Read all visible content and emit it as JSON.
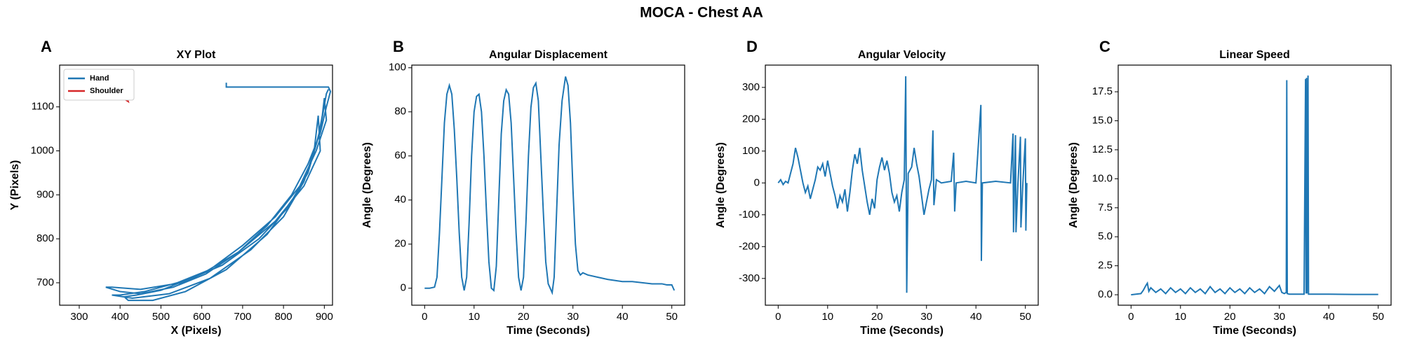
{
  "title": "MOCA - Chest AA",
  "chart_data": [
    {
      "type": "line",
      "panel": "A",
      "title": "XY Plot",
      "xlabel": "X (Pixels)",
      "ylabel": "Y (Pixels)",
      "xlim": [
        252,
        920
      ],
      "ylim": [
        649,
        1195
      ],
      "xticks": [
        300,
        400,
        500,
        600,
        700,
        800,
        900
      ],
      "yticks": [
        700,
        800,
        900,
        1000,
        1100
      ],
      "legend": "upper left",
      "series": [
        {
          "name": "Hand",
          "color": "#1f77b4",
          "x": [
            660,
            660,
            750,
            850,
            910,
            915,
            905,
            890,
            860,
            820,
            760,
            690,
            610,
            530,
            450,
            400,
            365,
            380,
            450,
            550,
            650,
            740,
            810,
            860,
            885,
            895,
            900,
            905,
            880,
            840,
            780,
            700,
            620,
            540,
            460,
            400,
            380,
            430,
            520,
            620,
            720,
            800,
            850,
            875,
            885,
            890,
            850,
            780,
            690,
            600,
            500,
            440,
            410,
            420,
            480,
            560,
            660,
            760,
            830,
            870,
            890,
            905,
            910
          ],
          "values": [
            1155,
            1145,
            1145,
            1145,
            1145,
            1135,
            1100,
            1040,
            970,
            900,
            830,
            770,
            720,
            690,
            675,
            680,
            690,
            690,
            685,
            700,
            740,
            800,
            870,
            950,
            1030,
            1080,
            1120,
            1070,
            1000,
            920,
            850,
            785,
            730,
            700,
            680,
            672,
            672,
            665,
            675,
            710,
            775,
            850,
            930,
            1000,
            1080,
            1000,
            920,
            840,
            770,
            720,
            683,
            672,
            668,
            660,
            660,
            680,
            730,
            810,
            900,
            980,
            1050,
            1130,
            1140
          ]
        },
        {
          "name": "Shoulder",
          "color": "#d62728",
          "x": [
            408,
            412,
            416,
            420,
            410,
            414,
            418
          ],
          "values": [
            1115,
            1130,
            1125,
            1112,
            1118,
            1135,
            1115
          ]
        }
      ]
    },
    {
      "type": "line",
      "panel": "B",
      "title": "Angular Displacement",
      "xlabel": "Time (Seconds)",
      "ylabel": "Angle (Degrees)",
      "xlim": [
        -2.6,
        52.6
      ],
      "ylim": [
        -7.7,
        101.2
      ],
      "xticks": [
        0,
        10,
        20,
        30,
        40,
        50
      ],
      "yticks": [
        0,
        20,
        40,
        60,
        80,
        100
      ],
      "series": [
        {
          "name": "Angular Displacement",
          "color": "#1f77b4",
          "x": [
            0,
            1,
            2,
            2.5,
            3,
            3.5,
            4,
            4.5,
            5,
            5.5,
            6,
            6.5,
            7,
            7.5,
            8,
            8.5,
            9,
            9.5,
            10,
            10.5,
            11,
            11.5,
            12,
            12.5,
            13,
            13.5,
            14,
            14.5,
            15,
            15.5,
            16,
            16.5,
            17,
            17.5,
            18,
            18.5,
            19,
            19.5,
            20,
            20.5,
            21,
            21.5,
            22,
            22.5,
            23,
            23.5,
            24,
            24.5,
            25,
            25.8,
            26.2,
            26.7,
            27.2,
            27.8,
            28.5,
            29,
            29.5,
            30,
            30.5,
            31,
            31.5,
            32,
            33,
            35,
            37,
            40,
            42,
            44,
            46,
            48,
            49,
            50,
            50.5
          ],
          "values": [
            0,
            0,
            0.5,
            5,
            25,
            50,
            75,
            88,
            92,
            88,
            72,
            50,
            25,
            5,
            -1,
            5,
            30,
            60,
            80,
            87,
            88,
            80,
            60,
            35,
            12,
            0,
            -1,
            10,
            40,
            70,
            85,
            90,
            88,
            75,
            50,
            25,
            5,
            -1,
            5,
            30,
            60,
            82,
            91,
            93,
            85,
            60,
            35,
            12,
            2,
            -2,
            5,
            35,
            65,
            85,
            96,
            92,
            75,
            45,
            20,
            8,
            6,
            7,
            6,
            5,
            4,
            3,
            3,
            2.5,
            2,
            2,
            1.5,
            1.5,
            -1
          ]
        }
      ]
    },
    {
      "type": "line",
      "panel": "D",
      "title": "Angular Velocity",
      "xlabel": "Time (Seconds)",
      "ylabel": "Angle (Degrees)",
      "xlim": [
        -2.6,
        52.6
      ],
      "ylim": [
        -384,
        370
      ],
      "xticks": [
        0,
        10,
        20,
        30,
        40,
        50
      ],
      "yticks": [
        -300,
        -200,
        -100,
        0,
        100,
        200,
        300
      ],
      "series": [
        {
          "name": "Angular Velocity",
          "color": "#1f77b4",
          "x": [
            0,
            0.5,
            1,
            1.5,
            2,
            2.5,
            3,
            3.5,
            4,
            4.5,
            5,
            5.5,
            6,
            6.5,
            7,
            7.5,
            8,
            8.5,
            9,
            9.5,
            10,
            10.5,
            11,
            11.5,
            12,
            12.5,
            13,
            13.5,
            14,
            14.5,
            15,
            15.5,
            16,
            16.5,
            17,
            17.5,
            18,
            18.5,
            19,
            19.5,
            20,
            20.5,
            21,
            21.5,
            22,
            22.5,
            23,
            23.5,
            24,
            24.5,
            25,
            25.5,
            25.8,
            26,
            26.3,
            27,
            27.5,
            28,
            28.5,
            29,
            29.5,
            30,
            30.5,
            31,
            31.3,
            31.5,
            32,
            33,
            35,
            35.5,
            35.7,
            36,
            38,
            40,
            41,
            41.1,
            41.3,
            44,
            47,
            47.5,
            47.6,
            48,
            48.1,
            48.5,
            49,
            49.1,
            49.5,
            50,
            50.1,
            50.3
          ],
          "values": [
            0,
            10,
            -5,
            5,
            0,
            30,
            60,
            110,
            80,
            40,
            0,
            -30,
            -10,
            -50,
            -20,
            10,
            50,
            40,
            60,
            20,
            70,
            30,
            -10,
            -40,
            -80,
            -40,
            -60,
            -20,
            -90,
            -30,
            40,
            90,
            60,
            110,
            40,
            -10,
            -60,
            -100,
            -50,
            -80,
            10,
            50,
            80,
            40,
            70,
            30,
            -30,
            -60,
            -40,
            -90,
            -30,
            10,
            335,
            -345,
            30,
            50,
            110,
            60,
            20,
            -40,
            -100,
            -60,
            -20,
            10,
            165,
            -70,
            10,
            0,
            5,
            95,
            -90,
            0,
            5,
            0,
            245,
            -245,
            0,
            5,
            0,
            155,
            -155,
            150,
            -155,
            0,
            145,
            -140,
            0,
            140,
            -150,
            0
          ]
        }
      ]
    },
    {
      "type": "line",
      "panel": "C",
      "title": "Linear Speed",
      "xlabel": "Time (Seconds)",
      "ylabel": "Angle (Degrees)",
      "xlim": [
        -2.6,
        52.6
      ],
      "ylim": [
        -0.9,
        19.8
      ],
      "xticks": [
        0,
        10,
        20,
        30,
        40,
        50
      ],
      "yticks": [
        {
          "value": 0,
          "label": "0.0"
        },
        2.5,
        {
          "value": 5,
          "label": "5.0"
        },
        7.5,
        {
          "value": 10,
          "label": "10.0"
        },
        12.5,
        {
          "value": 15,
          "label": "15.0"
        },
        17.5
      ],
      "series": [
        {
          "name": "Linear Speed",
          "color": "#1f77b4",
          "x": [
            0,
            1,
            2,
            2.5,
            3,
            3.3,
            3.6,
            4,
            5,
            6,
            7,
            8,
            9,
            10,
            11,
            12,
            13,
            14,
            15,
            16,
            17,
            18,
            19,
            20,
            21,
            22,
            23,
            24,
            25,
            26,
            27,
            28,
            29,
            30,
            30.5,
            31,
            31.4,
            31.5,
            31.6,
            32,
            34,
            35,
            35.3,
            35.4,
            35.5,
            35.6,
            35.8,
            35.9,
            36,
            40,
            45,
            50
          ],
          "values": [
            0,
            0.05,
            0.1,
            0.4,
            0.8,
            1,
            0.3,
            0.6,
            0.2,
            0.5,
            0.1,
            0.6,
            0.2,
            0.5,
            0.1,
            0.6,
            0.2,
            0.5,
            0.1,
            0.7,
            0.2,
            0.5,
            0.1,
            0.6,
            0.2,
            0.5,
            0.1,
            0.6,
            0.2,
            0.5,
            0.1,
            0.7,
            0.3,
            0.8,
            0.2,
            0.1,
            0.2,
            18.5,
            0.1,
            0.05,
            0.05,
            0.05,
            18.6,
            0.1,
            18.7,
            0.1,
            18.9,
            0.05,
            0.05,
            0.05,
            0.03,
            0.03
          ]
        }
      ]
    }
  ]
}
